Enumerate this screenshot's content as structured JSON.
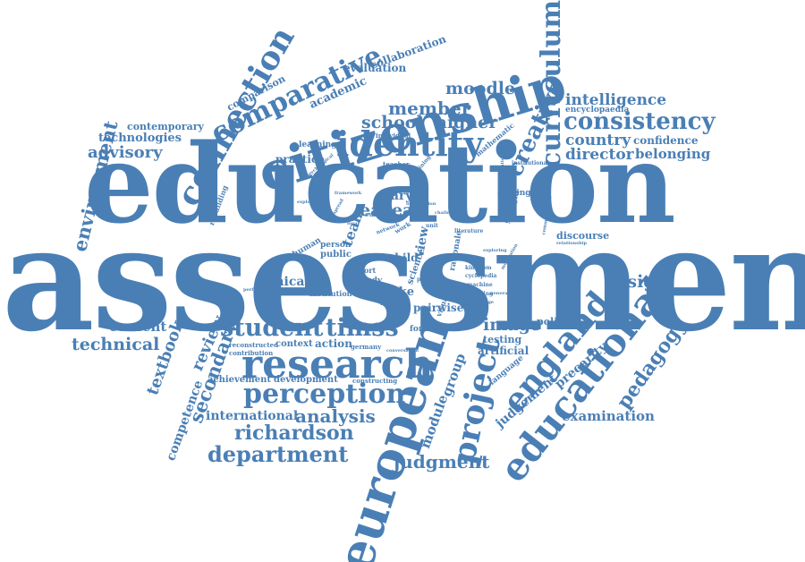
{
  "colors": {
    "main": "#4a7fb5",
    "light": "#6f9bc9"
  },
  "words": {
    "assessment": "assessment",
    "education": "education",
    "european": "european",
    "citizenship": "citizenship",
    "educational": "educational",
    "research": "research",
    "identity": "identity",
    "england": "england",
    "connection": "connection",
    "comparative": "comparative",
    "curriculum": "curriculum",
    "consistency": "consistency",
    "perception": "perception",
    "project": "project",
    "student": "student",
    "timss": "timss",
    "department": "department",
    "richardson": "richardson",
    "creative": "creative",
    "environment": "environment",
    "pedagogy": "pedagogy",
    "secondary": "secondary",
    "judgment": "judgment",
    "analysis": "analysis",
    "member": "member",
    "school": "school",
    "higher": "higher",
    "moodle": "moodle",
    "design": "design",
    "technical": "technical",
    "image": "image",
    "examination": "examination",
    "intelligence": "intelligence",
    "country": "country",
    "director": "director",
    "advisory": "advisory",
    "international": "international",
    "module": "module",
    "group": "group",
    "review": "review",
    "textbook": "textbook",
    "competence": "competence",
    "content": "content",
    "collaboration": "collaboration",
    "evaluation": "evaluation",
    "academic": "academic",
    "comparison": "comparison",
    "contemporary": "contemporary",
    "technologies": "technologies",
    "belonging": "belonging",
    "confidence": "confidence",
    "encyclopaedia": "encyclopaedia",
    "judgement": "judgement",
    "precarity": "precarity",
    "eacea": "eacea",
    "mary": "mary",
    "ethical": "ethical",
    "practice": "practice",
    "learning": "learning",
    "public": "public",
    "child": "child",
    "stake": "stake",
    "pairwise": "pairwise",
    "action": "action",
    "context": "context",
    "testing": "testing",
    "artificial": "artificial",
    "discourse": "discourse",
    "political": "political",
    "achievement": "achievement",
    "development": "development",
    "language": "language",
    "scoring": "scoring",
    "team": "team",
    "rebuilding": "rebuilding",
    "human": "human",
    "person": "person",
    "study": "study",
    "formal": "formal",
    "report": "report",
    "national": "national",
    "institution": "institution",
    "validity": "validity",
    "view": "view",
    "science": "science",
    "rationale": "rationale",
    "georgia": "georgia",
    "mathematic": "mathematic",
    "individual": "individual",
    "teacher": "teacher",
    "institutional": "institutional",
    "reconstructed": "reconstructed",
    "contribution": "contribution",
    "constructing": "constructing",
    "germany": "germany",
    "europe": "europe",
    "framework": "framework",
    "psychological": "psychological",
    "relationship": "relationship",
    "cyclopedia": "cyclopedia",
    "machine": "machine",
    "knowledge": "knowledge",
    "kingdom": "kingdom",
    "meaning": "meaning",
    "literature": "literature",
    "challenge": "challenge",
    "paper": "paper",
    "visual": "visual",
    "conversation": "conversation",
    "professional": "professional",
    "performance": "performance",
    "communication": "communication",
    "examining": "examining",
    "interpretation": "interpretation",
    "network": "network",
    "work": "work",
    "exploring": "exploring",
    "moderation": "moderation",
    "unit": "unit",
    "explore": "explore",
    "local": "local",
    "generation": "generation",
    "information": "information",
    "spread": "spread"
  }
}
